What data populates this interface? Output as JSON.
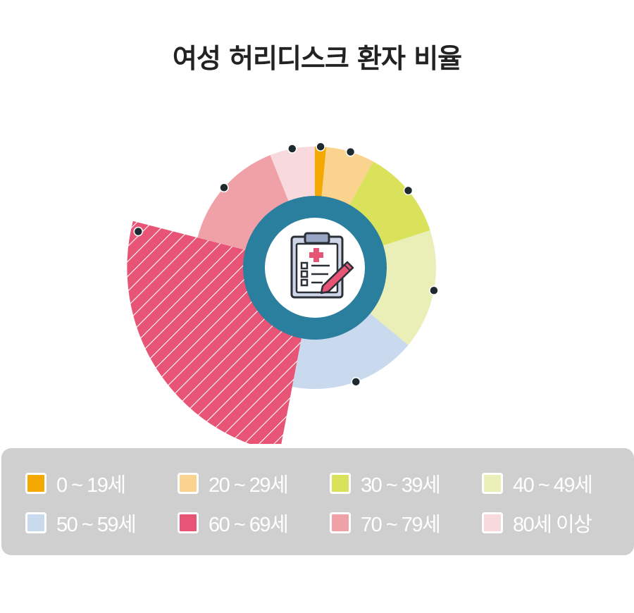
{
  "title": "여성 허리디스크 환자 비율",
  "chart_data": {
    "type": "pie",
    "style": "radial-bar (nightingale)",
    "categories": [
      "0 ~ 19세",
      "20 ~ 29세",
      "30 ~ 39세",
      "40 ~ 49세",
      "50 ~ 59세",
      "60 ~ 69세",
      "70 ~ 79세",
      "80세 이상"
    ],
    "shares_pct": [
      1.5,
      6.5,
      12,
      16,
      17,
      26,
      15,
      6
    ],
    "relative_magnitude": [
      1.0,
      1.0,
      1.0,
      1.0,
      1.0,
      1.55,
      1.0,
      1.0
    ],
    "colors": [
      "#f5a800",
      "#fad38f",
      "#d9e25a",
      "#e9efb6",
      "#c9d9ee",
      "#e85475",
      "#f0a1a8",
      "#f8d9dd"
    ],
    "highlighted": "60 ~ 69세",
    "legend_position": "bottom"
  },
  "center_icon": "medical-clipboard-icon",
  "ring_color": "#2a7f9e"
}
